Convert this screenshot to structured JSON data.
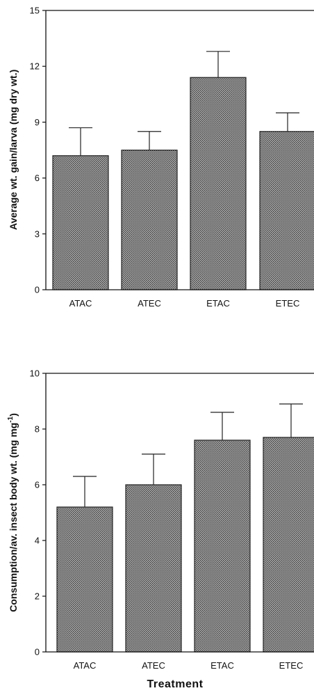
{
  "chart_data": [
    {
      "type": "bar",
      "categories": [
        "ATAC",
        "ATEC",
        "ETAC",
        "ETEC"
      ],
      "values": [
        7.2,
        7.5,
        11.4,
        8.5
      ],
      "errors": [
        1.5,
        1.0,
        1.4,
        1.0
      ],
      "title": "",
      "xlabel": "",
      "ylabel": "Average wt. gain/larva (mg dry wt.)",
      "ylim": [
        0,
        15
      ],
      "yticks": [
        "0",
        "3",
        "6",
        "9",
        "12",
        "15"
      ],
      "grid": false,
      "bar_color": "#8c8c8c"
    },
    {
      "type": "bar",
      "categories": [
        "ATAC",
        "ATEC",
        "ETAC",
        "ETEC"
      ],
      "values": [
        5.2,
        6.0,
        7.6,
        7.7
      ],
      "errors": [
        1.1,
        1.1,
        1.0,
        1.2
      ],
      "title": "",
      "xlabel": "Treatment",
      "ylabel": "Consumption/av. insect body wt. (mg mg",
      "ylabel_superscript": "-1",
      "ylabel_close": ")",
      "ylim": [
        0,
        10
      ],
      "yticks": [
        "0",
        "2",
        "4",
        "6",
        "8",
        "10"
      ],
      "grid": false,
      "bar_color": "#8c8c8c"
    }
  ]
}
